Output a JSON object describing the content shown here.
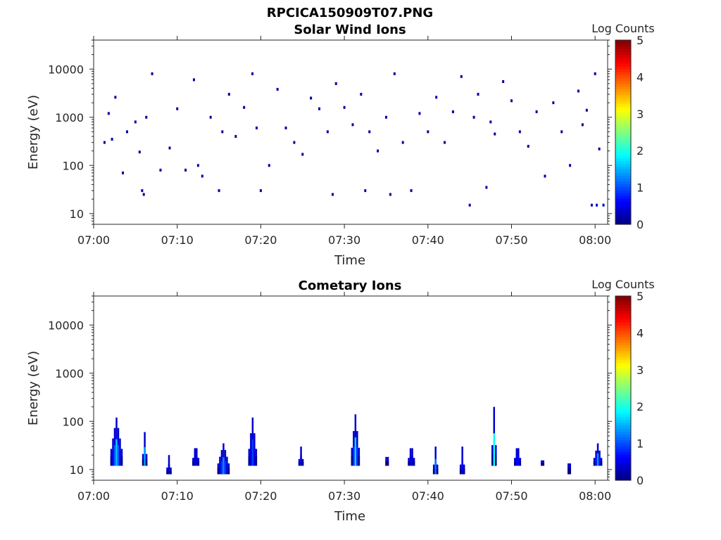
{
  "figure": {
    "title": "RPCICA150909T07.PNG"
  },
  "panels": [
    {
      "title": "Solar Wind Ions",
      "xlabel": "Time",
      "ylabel": "Energy (eV)",
      "colorbar_label": "Log Counts"
    },
    {
      "title": "Cometary Ions",
      "xlabel": "Time",
      "ylabel": "Energy (eV)",
      "colorbar_label": "Log Counts"
    }
  ],
  "chart_data": [
    {
      "type": "heatmap",
      "title": "Solar Wind Ions",
      "xlabel": "Time",
      "ylabel": "Energy (eV)",
      "x_tick_labels": [
        "07:00",
        "07:10",
        "07:20",
        "07:30",
        "07:40",
        "07:50",
        "08:00"
      ],
      "y_tick_labels": [
        "10",
        "100",
        "1000",
        "10000"
      ],
      "y_scale": "log",
      "ylim": [
        6,
        40000
      ],
      "xlim_minutes": [
        0,
        61.5
      ],
      "colorbar": {
        "label": "Log Counts",
        "ticks": [
          "0",
          "1",
          "2",
          "3",
          "4",
          "5"
        ],
        "range": [
          0,
          5
        ],
        "colormap": "jet"
      },
      "cells": [
        [
          1.3,
          300,
          0.2
        ],
        [
          1.8,
          1200,
          0.15
        ],
        [
          2.2,
          350,
          0.2
        ],
        [
          2.6,
          2600,
          0.15
        ],
        [
          3.5,
          70,
          0.2
        ],
        [
          4.0,
          500,
          0.15
        ],
        [
          5.0,
          800,
          0.2
        ],
        [
          5.5,
          190,
          0.2
        ],
        [
          5.8,
          30,
          0.2
        ],
        [
          6.0,
          25,
          0.2
        ],
        [
          6.3,
          1000,
          0.15
        ],
        [
          7.0,
          8000,
          0.2
        ],
        [
          8.0,
          80,
          0.2
        ],
        [
          9.1,
          230,
          0.15
        ],
        [
          10.0,
          1500,
          0.2
        ],
        [
          11.0,
          80,
          0.15
        ],
        [
          12.0,
          6000,
          0.2
        ],
        [
          12.5,
          100,
          0.2
        ],
        [
          13.0,
          60,
          0.2
        ],
        [
          14.0,
          1000,
          0.15
        ],
        [
          15.0,
          30,
          0.2
        ],
        [
          15.4,
          500,
          0.15
        ],
        [
          16.2,
          3000,
          0.2
        ],
        [
          17.0,
          400,
          0.2
        ],
        [
          18.0,
          1600,
          0.15
        ],
        [
          19.0,
          8000,
          0.2
        ],
        [
          19.5,
          600,
          0.2
        ],
        [
          20.0,
          30,
          0.2
        ],
        [
          21.0,
          100,
          0.15
        ],
        [
          22.0,
          3800,
          0.2
        ],
        [
          23.0,
          600,
          0.2
        ],
        [
          24.0,
          300,
          0.15
        ],
        [
          25.0,
          170,
          0.2
        ],
        [
          26.0,
          2500,
          0.15
        ],
        [
          27.0,
          1500,
          0.2
        ],
        [
          28.0,
          500,
          0.2
        ],
        [
          28.6,
          25,
          0.2
        ],
        [
          29.0,
          5000,
          0.15
        ],
        [
          30.0,
          1600,
          0.2
        ],
        [
          31.0,
          700,
          0.2
        ],
        [
          32.0,
          3000,
          0.2
        ],
        [
          32.5,
          30,
          0.2
        ],
        [
          33.0,
          500,
          0.15
        ],
        [
          34.0,
          200,
          0.2
        ],
        [
          35.0,
          1000,
          0.2
        ],
        [
          35.5,
          25,
          0.2
        ],
        [
          36.0,
          8000,
          0.15
        ],
        [
          37.0,
          300,
          0.2
        ],
        [
          38.0,
          30,
          0.2
        ],
        [
          39.0,
          1200,
          0.2
        ],
        [
          40.0,
          500,
          0.15
        ],
        [
          41.0,
          2600,
          0.2
        ],
        [
          42.0,
          300,
          0.2
        ],
        [
          43.0,
          1300,
          0.15
        ],
        [
          44.0,
          7000,
          0.2
        ],
        [
          45.0,
          15,
          0.2
        ],
        [
          45.5,
          1000,
          0.2
        ],
        [
          46.0,
          3000,
          0.15
        ],
        [
          47.0,
          35,
          0.2
        ],
        [
          47.5,
          800,
          0.2
        ],
        [
          48.0,
          450,
          0.2
        ],
        [
          49.0,
          5500,
          0.15
        ],
        [
          50.0,
          2200,
          0.2
        ],
        [
          51.0,
          500,
          0.2
        ],
        [
          52.0,
          250,
          0.15
        ],
        [
          53.0,
          1300,
          0.2
        ],
        [
          54.0,
          60,
          0.2
        ],
        [
          55.0,
          2000,
          0.2
        ],
        [
          56.0,
          500,
          0.15
        ],
        [
          57.0,
          100,
          0.2
        ],
        [
          58.0,
          3500,
          0.2
        ],
        [
          58.5,
          700,
          0.15
        ],
        [
          59.0,
          1400,
          0.2
        ],
        [
          60.0,
          8000,
          0.2
        ],
        [
          60.5,
          220,
          0.2
        ],
        [
          61.0,
          15,
          0.4
        ],
        [
          60.2,
          15,
          0.4
        ],
        [
          59.6,
          15,
          0.4
        ]
      ]
    },
    {
      "type": "heatmap",
      "title": "Cometary Ions",
      "xlabel": "Time",
      "ylabel": "Energy (eV)",
      "x_tick_labels": [
        "07:00",
        "07:10",
        "07:20",
        "07:30",
        "07:40",
        "07:50",
        "08:00"
      ],
      "y_tick_labels": [
        "10",
        "100",
        "1000",
        "10000"
      ],
      "y_scale": "log",
      "ylim": [
        6,
        40000
      ],
      "xlim_minutes": [
        0,
        61.5
      ],
      "colorbar": {
        "label": "Log Counts",
        "ticks": [
          "0",
          "1",
          "2",
          "3",
          "4",
          "5"
        ],
        "range": [
          0,
          5
        ],
        "colormap": "jet"
      },
      "bursts": [
        {
          "t0": 2.0,
          "t1": 3.4,
          "e_lo": 12,
          "e_hi": 120,
          "peak": 1.6
        },
        {
          "t0": 5.8,
          "t1": 6.5,
          "e_lo": 12,
          "e_hi": 60,
          "peak": 1.4
        },
        {
          "t0": 8.7,
          "t1": 9.3,
          "e_lo": 8,
          "e_hi": 20,
          "peak": 0.4
        },
        {
          "t0": 11.8,
          "t1": 12.6,
          "e_lo": 12,
          "e_hi": 35,
          "peak": 0.6
        },
        {
          "t0": 14.8,
          "t1": 16.2,
          "e_lo": 8,
          "e_hi": 35,
          "peak": 1.3
        },
        {
          "t0": 18.5,
          "t1": 19.5,
          "e_lo": 12,
          "e_hi": 120,
          "peak": 0.9
        },
        {
          "t0": 24.5,
          "t1": 25.2,
          "e_lo": 12,
          "e_hi": 30,
          "peak": 0.5
        },
        {
          "t0": 30.8,
          "t1": 31.8,
          "e_lo": 12,
          "e_hi": 140,
          "peak": 1.7
        },
        {
          "t0": 34.9,
          "t1": 35.4,
          "e_lo": 12,
          "e_hi": 40,
          "peak": 1.6
        },
        {
          "t0": 37.6,
          "t1": 38.5,
          "e_lo": 12,
          "e_hi": 35,
          "peak": 0.6
        },
        {
          "t0": 40.6,
          "t1": 41.3,
          "e_lo": 8,
          "e_hi": 30,
          "peak": 1.2
        },
        {
          "t0": 43.8,
          "t1": 44.4,
          "e_lo": 8,
          "e_hi": 30,
          "peak": 0.6
        },
        {
          "t0": 47.6,
          "t1": 48.3,
          "e_lo": 12,
          "e_hi": 200,
          "peak": 1.9
        },
        {
          "t0": 50.3,
          "t1": 51.2,
          "e_lo": 12,
          "e_hi": 35,
          "peak": 0.9
        },
        {
          "t0": 53.5,
          "t1": 54.0,
          "e_lo": 12,
          "e_hi": 25,
          "peak": 0.3
        },
        {
          "t0": 56.7,
          "t1": 57.2,
          "e_lo": 8,
          "e_hi": 35,
          "peak": 0.3
        },
        {
          "t0": 59.8,
          "t1": 60.9,
          "e_lo": 12,
          "e_hi": 35,
          "peak": 1.4
        }
      ]
    }
  ]
}
